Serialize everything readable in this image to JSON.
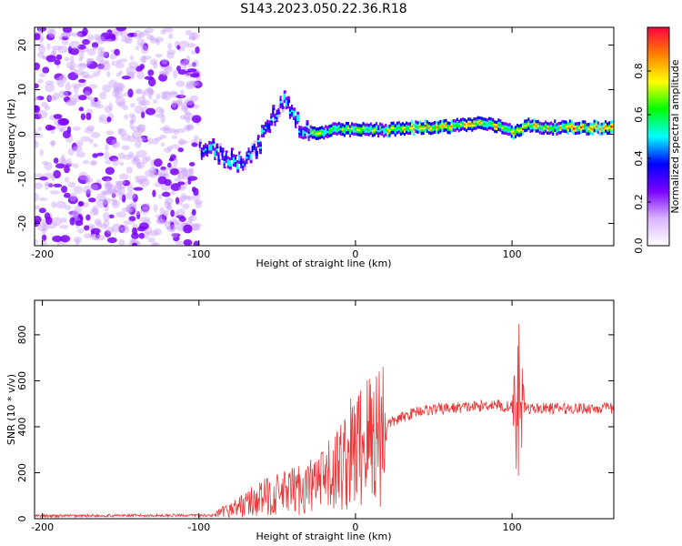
{
  "figure": {
    "title": "S143.2023.050.22.36.R18"
  },
  "chart_data": [
    {
      "type": "heatmap",
      "xlabel": "Height of straight line (km)",
      "ylabel": "Frequency (Hz)",
      "xlim": [
        -205,
        165
      ],
      "ylim": [
        -25,
        24
      ],
      "xticks": [
        -200,
        -100,
        0,
        100
      ],
      "yticks": [
        -20,
        -10,
        0,
        10,
        20
      ],
      "colorbar": {
        "label": "Normalized spectral amplitude",
        "range": [
          0,
          1
        ],
        "ticks": [
          0.0,
          0.2,
          0.4,
          0.6,
          0.8
        ],
        "colors": [
          "#ffffff",
          "#d9b3ff",
          "#7a00ff",
          "#0000ff",
          "#00ffff",
          "#00ff00",
          "#ffff00",
          "#ff8000",
          "#ff0040"
        ]
      },
      "ridge": {
        "x": [
          -95,
          -85,
          -75,
          -65,
          -55,
          -45,
          -35,
          -25,
          -15,
          0,
          20,
          40,
          60,
          80,
          95,
          100,
          110,
          120,
          140,
          165
        ],
        "y": [
          -3,
          -5,
          -6,
          -4,
          3,
          8,
          1,
          0,
          1,
          1,
          1,
          1.5,
          1.8,
          2.5,
          1.5,
          0.5,
          2,
          1.5,
          1.5,
          1.5
        ]
      }
    },
    {
      "type": "line",
      "xlabel": "Height of straight line (km)",
      "ylabel": "SNR (10 * v/v)",
      "xlim": [
        -205,
        165
      ],
      "ylim": [
        0,
        950
      ],
      "xticks": [
        -200,
        -100,
        0,
        100
      ],
      "yticks": [
        0,
        200,
        400,
        600,
        800
      ],
      "color": "#e83a3a",
      "envelope": {
        "x": [
          -205,
          -90,
          -80,
          -60,
          -40,
          -20,
          0,
          10,
          20,
          40,
          60,
          80,
          90,
          95,
          100,
          103,
          106,
          110,
          120,
          140,
          165
        ],
        "y": [
          12,
          15,
          40,
          90,
          120,
          160,
          300,
          360,
          410,
          470,
          480,
          490,
          500,
          480,
          500,
          620,
          420,
          480,
          480,
          480,
          480
        ]
      }
    }
  ]
}
